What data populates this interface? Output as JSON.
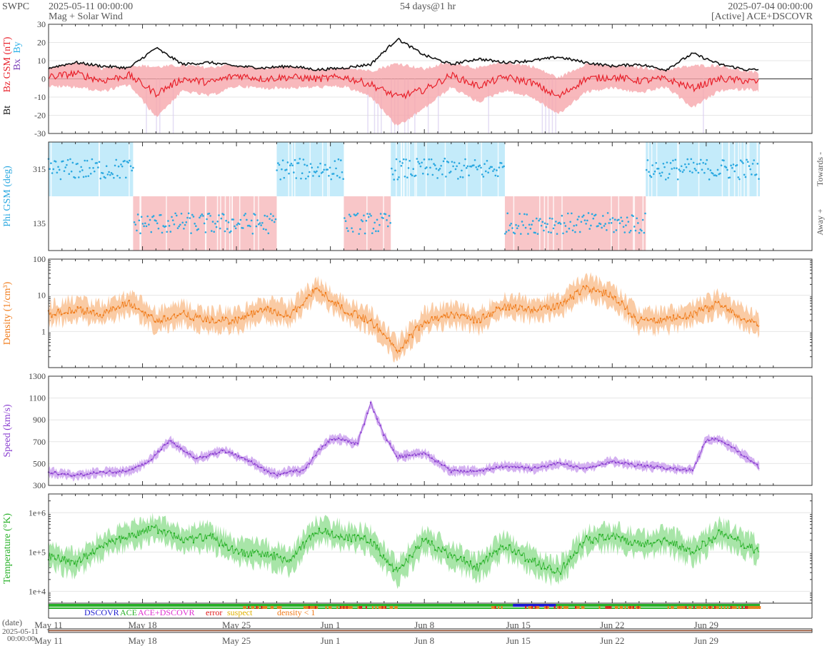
{
  "header": {
    "brand": "SWPC",
    "start_time": "2025-05-11 00:00:00",
    "subtitle": "Mag + Solar Wind",
    "span": "54 days@1 hr",
    "end_time": "2025-07-04 00:00:00",
    "source": "[Active] ACE+DSCOVR"
  },
  "chart_data": [
    {
      "type": "line",
      "panel": "mag",
      "ylabel_bt": "Bt",
      "ylabel_bz": "Bz GSM (nT)",
      "ylabel_bx": "Bx",
      "ylabel_by": "By",
      "ylim": [
        -30,
        30
      ],
      "yticks": [
        30,
        20,
        10,
        0,
        -10,
        -20,
        -30
      ],
      "colors": {
        "bt": "#111111",
        "bz": "#e8202a",
        "bz_fill": "#f6a6ab",
        "bx": "#7a3fb8",
        "by": "#2ab0e8",
        "neg_band": "#d8cdf0"
      },
      "series": [
        {
          "key": "bt",
          "x_days": [
            0,
            2,
            4,
            6,
            8,
            10,
            12,
            14,
            16,
            18,
            20,
            22,
            24,
            26,
            28,
            30,
            32,
            34,
            36,
            38,
            40,
            42,
            44,
            46,
            48,
            50,
            52,
            53
          ],
          "values": [
            6,
            9,
            7,
            6,
            17,
            8,
            9,
            7,
            6,
            7,
            5,
            6,
            8,
            22,
            13,
            8,
            11,
            9,
            10,
            12,
            9,
            7,
            8,
            5,
            14,
            8,
            5,
            5
          ]
        },
        {
          "key": "bz",
          "x_days": [
            0,
            2,
            4,
            6,
            8,
            10,
            12,
            14,
            16,
            18,
            20,
            22,
            24,
            26,
            28,
            30,
            32,
            34,
            36,
            38,
            40,
            42,
            44,
            46,
            48,
            50,
            52,
            53
          ],
          "values": [
            1,
            3,
            -1,
            2,
            -8,
            0,
            -2,
            2,
            0,
            1,
            0,
            1,
            -3,
            -10,
            -6,
            2,
            -4,
            1,
            -2,
            -10,
            0,
            1,
            -1,
            0,
            -5,
            0,
            -1,
            -2
          ]
        }
      ]
    },
    {
      "type": "scatter",
      "panel": "phi",
      "ylabel": "Phi GSM (deg)",
      "yticks": [
        315,
        135
      ],
      "ylim": [
        45,
        405
      ],
      "right_labels": [
        "Towards -",
        "Away +"
      ],
      "colors": {
        "points": "#2aa8e0",
        "towards_fill": "#c4ebfa",
        "away_fill": "#f8c6c8"
      },
      "towards_intervals": [
        [
          0,
          6.3
        ],
        [
          17,
          22
        ],
        [
          25.5,
          34
        ],
        [
          44.5,
          53
        ]
      ],
      "away_intervals": [
        [
          6.3,
          17
        ],
        [
          22,
          25.5
        ],
        [
          34,
          44.5
        ]
      ]
    },
    {
      "type": "line",
      "panel": "density",
      "ylabel": "Density (1/cm³)",
      "scale": "log",
      "ylim": [
        0.1,
        100
      ],
      "yticks": [
        100,
        10,
        1
      ],
      "colors": {
        "line": "#f07a18",
        "fill": "#f9c59a"
      },
      "x_days": [
        0,
        2,
        4,
        6,
        8,
        10,
        12,
        14,
        16,
        18,
        20,
        22,
        24,
        26,
        28,
        30,
        32,
        34,
        36,
        38,
        40,
        42,
        44,
        46,
        48,
        50,
        52,
        53
      ],
      "values": [
        3,
        4,
        3,
        6,
        2,
        3,
        2,
        2,
        4,
        3,
        15,
        4,
        2,
        0.3,
        2,
        3,
        2,
        5,
        4,
        5,
        17,
        10,
        2,
        2,
        3,
        6,
        2,
        1.5
      ]
    },
    {
      "type": "line",
      "panel": "speed",
      "ylabel": "Speed (km/s)",
      "ylim": [
        300,
        1300
      ],
      "yticks": [
        1300,
        1100,
        900,
        700,
        500,
        300
      ],
      "colors": {
        "line": "#8a3fd0",
        "fill": "#cfa8f0"
      },
      "x_days": [
        0,
        2,
        4,
        6,
        7.5,
        9,
        11,
        13,
        15,
        16,
        17,
        18,
        19,
        20,
        21,
        22,
        23,
        24,
        25,
        26,
        28,
        30,
        32,
        34,
        36,
        38,
        40,
        42,
        44,
        46,
        48,
        49,
        50,
        52,
        53
      ],
      "values": [
        420,
        390,
        420,
        430,
        520,
        710,
        540,
        620,
        520,
        450,
        400,
        430,
        430,
        600,
        720,
        720,
        680,
        1050,
        760,
        560,
        600,
        430,
        430,
        480,
        450,
        500,
        460,
        520,
        480,
        460,
        440,
        720,
        720,
        560,
        460
      ]
    },
    {
      "type": "line",
      "panel": "temperature",
      "ylabel": "Temperature (°K)",
      "scale": "log",
      "ylim": [
        5000,
        3000000
      ],
      "yticks": [
        "1e+6",
        "1e+5",
        "1e+4"
      ],
      "colors": {
        "line": "#26b026",
        "fill": "#9ee29e"
      },
      "x_days": [
        0,
        2,
        4,
        6,
        8,
        10,
        12,
        14,
        16,
        18,
        20,
        22,
        24,
        26,
        28,
        30,
        32,
        34,
        36,
        38,
        40,
        42,
        44,
        46,
        48,
        50,
        52,
        53
      ],
      "values": [
        80000,
        50000,
        150000,
        250000,
        400000,
        200000,
        250000,
        100000,
        90000,
        60000,
        350000,
        250000,
        200000,
        30000,
        200000,
        80000,
        40000,
        150000,
        60000,
        30000,
        200000,
        250000,
        150000,
        200000,
        100000,
        300000,
        150000,
        100000
      ]
    }
  ],
  "source_legend": {
    "items": [
      {
        "label": "DSCOVR",
        "color": "#1c1cd0"
      },
      {
        "label": "ACE",
        "color": "#28b028"
      },
      {
        "label": "ACE+DSCOVR",
        "color": "#e030d0"
      },
      {
        "label": "error",
        "color": "#e01818"
      },
      {
        "label": "suspect",
        "color": "#e0b000"
      },
      {
        "label": "density < 1",
        "color": "#f07a18"
      }
    ]
  },
  "time_axis": {
    "date_label": "(date)",
    "start_label": "2025-05-11",
    "start_time_label": "00:00:00",
    "ticks": [
      {
        "label": "May 11",
        "day": 0
      },
      {
        "label": "May 18",
        "day": 7
      },
      {
        "label": "May 25",
        "day": 14
      },
      {
        "label": "Jun 1",
        "day": 21
      },
      {
        "label": "Jun 8",
        "day": 28
      },
      {
        "label": "Jun 15",
        "day": 35
      },
      {
        "label": "Jun 22",
        "day": 42
      },
      {
        "label": "Jun 29",
        "day": 49
      }
    ],
    "total_days": 54
  }
}
